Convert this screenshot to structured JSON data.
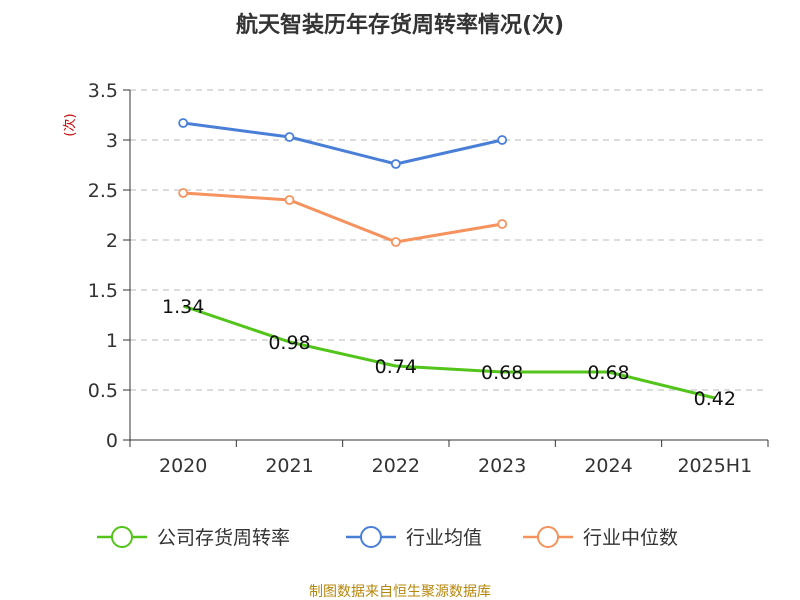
{
  "chart_data": {
    "type": "line",
    "title": "航天智装历年存货周转率情况(次)",
    "ylabel": "(次)",
    "categories": [
      "2020",
      "2021",
      "2022",
      "2023",
      "2024",
      "2025H1"
    ],
    "ylim": [
      0,
      3.5
    ],
    "yticks": [
      "0",
      "0.5",
      "1",
      "1.5",
      "2",
      "2.5",
      "3",
      "3.5"
    ],
    "grid": true,
    "legend_position": "bottom",
    "series": [
      {
        "name": "公司存货周转率",
        "color": "#52c41a",
        "values": [
          1.34,
          0.98,
          0.74,
          0.68,
          0.68,
          0.42
        ],
        "labels": [
          "1.34",
          "0.98",
          "0.74",
          "0.68",
          "0.68",
          "0.42"
        ]
      },
      {
        "name": "行业均值",
        "color": "#4a7fd8",
        "values": [
          3.17,
          3.03,
          2.76,
          3.0,
          null,
          null
        ]
      },
      {
        "name": "行业中位数",
        "color": "#f5925e",
        "values": [
          2.47,
          2.4,
          1.98,
          2.16,
          null,
          null
        ]
      }
    ]
  },
  "source_note": "制图数据来自恒生聚源数据库"
}
